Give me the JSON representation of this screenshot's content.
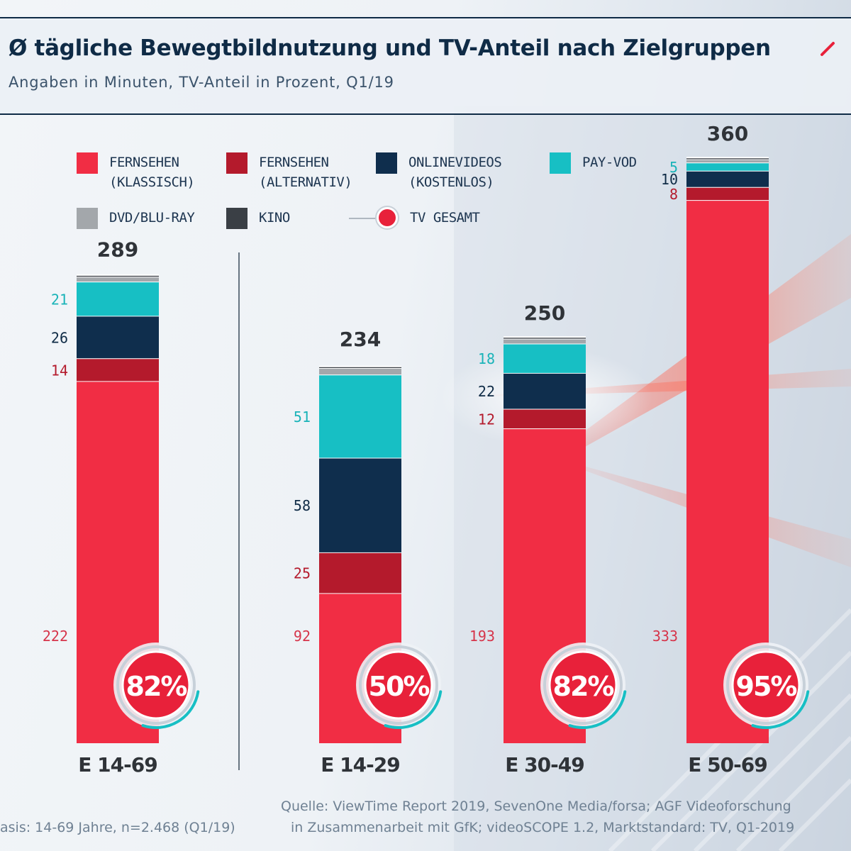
{
  "title": "Ø tägliche Bewegtbildnutzung und TV-Anteil nach Zielgruppen",
  "subtitle": "Angaben in Minuten, TV-Anteil in Prozent, Q1/19",
  "legend": [
    {
      "label": "FERNSEHEN\n(KLASSISCH)",
      "color": "#f12d44"
    },
    {
      "label": "FERNSEHEN\n(ALTERNATIV)",
      "color": "#b41a2c"
    },
    {
      "label": "ONLINEVIDEOS\n(KOSTENLOS)",
      "color": "#0f2e4d"
    },
    {
      "label": "PAY-VOD",
      "color": "#17bfc4"
    },
    {
      "label": "DVD/BLU-RAY",
      "color": "#a3a7ab"
    },
    {
      "label": "KINO",
      "color": "#3a3f45"
    },
    {
      "label": "TV GESAMT",
      "color": "#e8213a"
    }
  ],
  "chart_data": {
    "type": "bar",
    "stacked": true,
    "categories": [
      "E 14-69",
      "E 14-29",
      "E 30-49",
      "E 50-69"
    ],
    "totals": [
      289,
      234,
      250,
      360
    ],
    "series": [
      {
        "name": "FERNSEHEN (KLASSISCH)",
        "values": [
          222,
          92,
          193,
          333
        ],
        "color": "#f12d44",
        "label_color": "#d6344a"
      },
      {
        "name": "FERNSEHEN (ALTERNATIV)",
        "values": [
          14,
          25,
          12,
          8
        ],
        "color": "#b41a2c",
        "label_color": "#b41a2c"
      },
      {
        "name": "ONLINEVIDEOS (KOSTENLOS)",
        "values": [
          26,
          58,
          22,
          10
        ],
        "color": "#0f2e4d",
        "label_color": "#0f2b46"
      },
      {
        "name": "PAY-VOD",
        "values": [
          21,
          51,
          18,
          5
        ],
        "color": "#17bfc4",
        "label_color": "#19b3b8"
      },
      {
        "name": "DVD/BLU-RAY",
        "values": [
          3,
          4,
          3,
          2
        ],
        "color": "#a3a7ab",
        "label_color": null
      },
      {
        "name": "KINO",
        "values": [
          1,
          1,
          1,
          1
        ],
        "color": "#3a3f45",
        "label_color": null
      }
    ],
    "tv_share": [
      "82%",
      "50%",
      "82%",
      "95%"
    ],
    "tv_share_values": [
      82,
      50,
      82,
      95
    ],
    "divider_after_first": true
  },
  "footnotes": {
    "basis": "asis: 14-69 Jahre, n=2.468 (Q1/19)",
    "source_line1": "Quelle: ViewTime Report 2019, SevenOne Media/forsa; AGF Videoforschung",
    "source_line2": "in Zusammenarbeit mit GfK; videoSCOPE 1.2, Marktstandard: TV, Q1-2019"
  }
}
